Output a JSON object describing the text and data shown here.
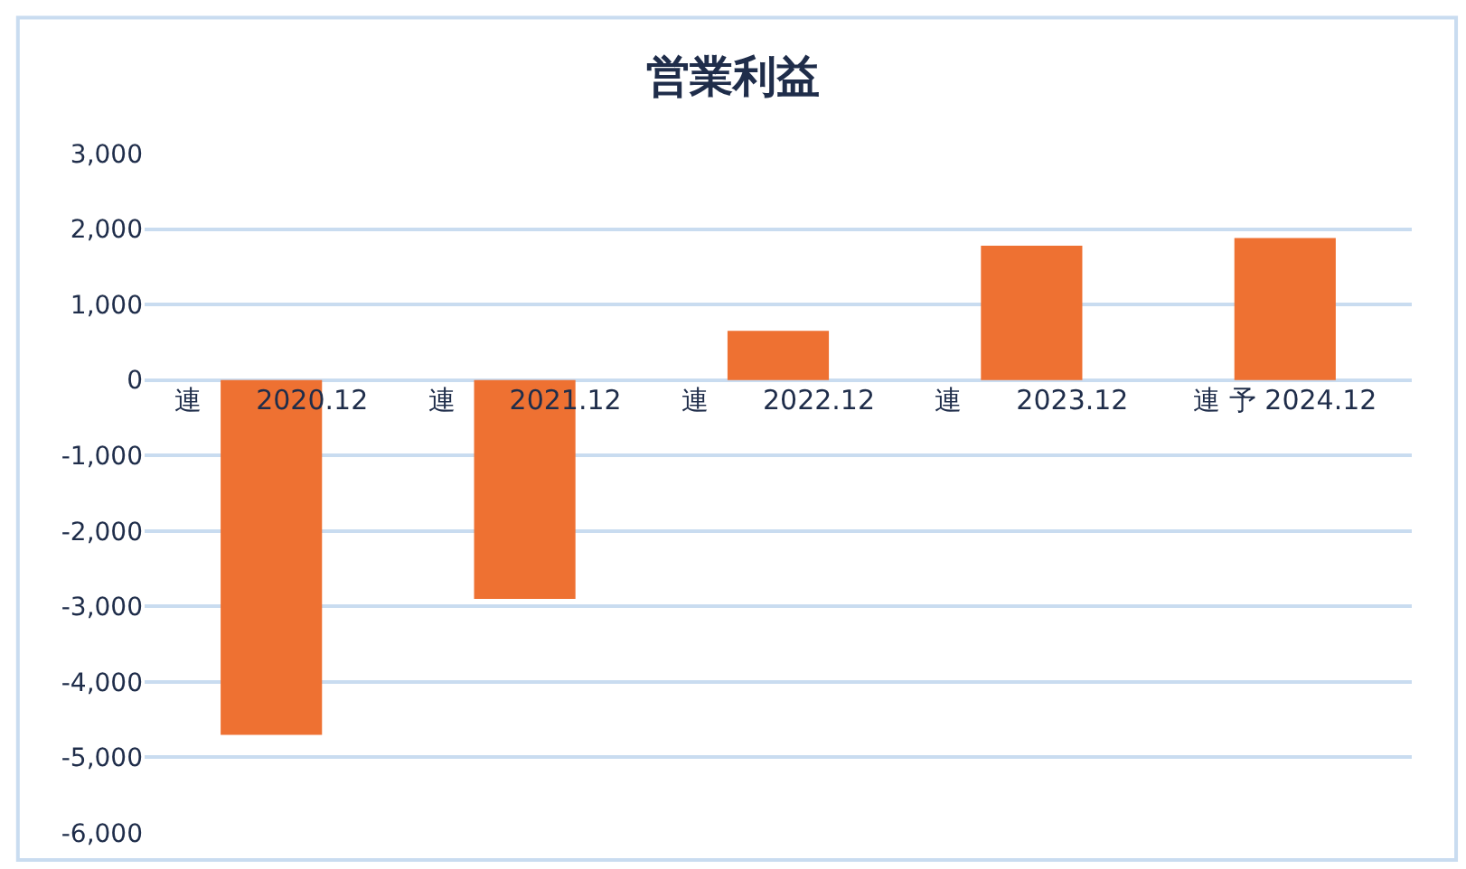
{
  "chart_data": {
    "type": "bar",
    "title": "営業利益",
    "categories": [
      "連　　2020.12",
      "連　　2021.12",
      "連　　2022.12",
      "連　　2023.12",
      "連 予 2024.12"
    ],
    "values": [
      -4700,
      -2900,
      650,
      1780,
      1880
    ],
    "color": "#ee7132",
    "ylim": [
      -6000,
      3000
    ],
    "yticks": [
      {
        "value": -6000,
        "label": "-6,000"
      },
      {
        "value": -5000,
        "label": "-5,000"
      },
      {
        "value": -4000,
        "label": "-4,000"
      },
      {
        "value": -3000,
        "label": "-3,000"
      },
      {
        "value": -2000,
        "label": "-2,000"
      },
      {
        "value": -1000,
        "label": "-1,000"
      },
      0,
      {
        "value": 1000,
        "label": "1,000"
      },
      {
        "value": 2000,
        "label": "2,000"
      },
      {
        "value": 3000,
        "label": "3,000"
      }
    ],
    "grid": "y"
  }
}
